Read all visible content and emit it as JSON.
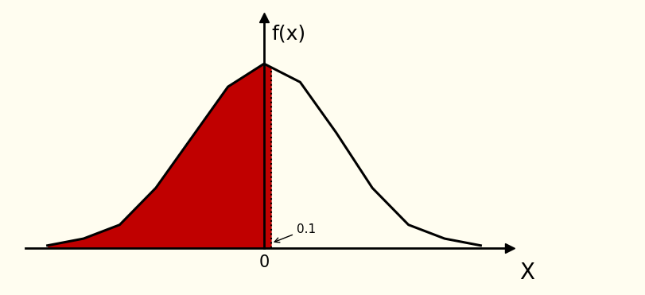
{
  "chart_data": {
    "type": "area",
    "x": [
      -3,
      -2.5,
      -2,
      -1.5,
      -1,
      -0.5,
      0,
      0.5,
      1,
      1.5,
      2,
      2.5,
      3
    ],
    "values": [
      0.005,
      0.02,
      0.05,
      0.13,
      0.24,
      0.35,
      0.4,
      0.36,
      0.25,
      0.13,
      0.05,
      0.02,
      0.005
    ],
    "x_label": "X",
    "y_label": "f(x)",
    "xlim": [
      -3.3,
      3.4
    ],
    "ylim": [
      0,
      0.5
    ],
    "xticks": [
      0
    ],
    "yticks": [],
    "tick_labels": "x",
    "color": "#c00000",
    "grid": false,
    "annotations": [
      {
        "label": "0.1",
        "x": 0.1
      }
    ]
  }
}
